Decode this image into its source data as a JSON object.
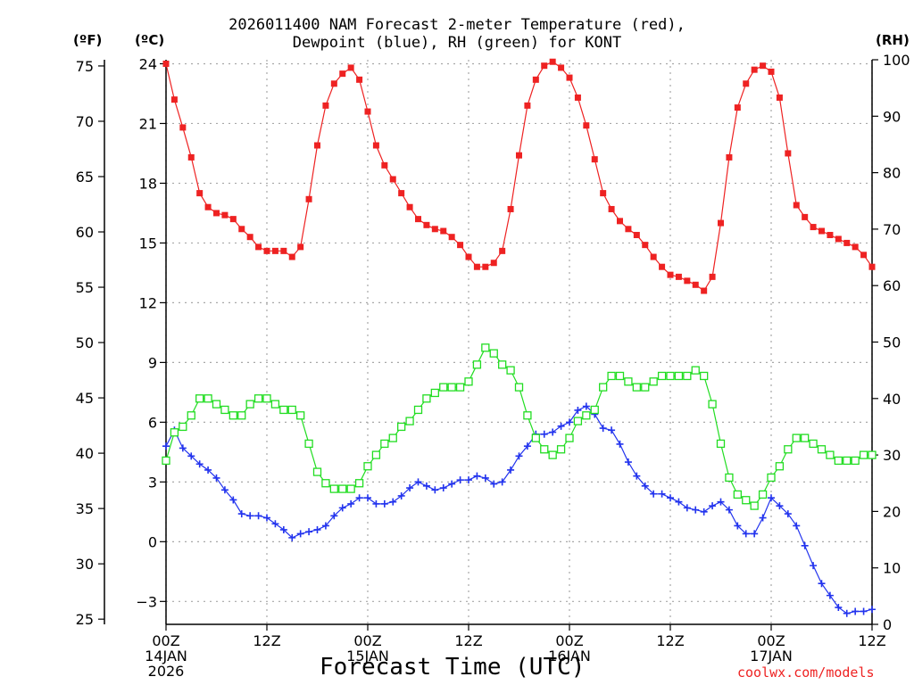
{
  "chart_data": {
    "type": "line",
    "title_line1": "2026011400 NAM Forecast 2-meter Temperature (red),",
    "title_line2": "Dewpoint (blue), RH (green) for KONT",
    "xlabel": "Forecast Time (UTC)",
    "credit": "coolwx.com/models",
    "left_unit_f": "(ºF)",
    "left_unit_c": "(ºC)",
    "right_unit": "(RH)",
    "x_range_hours": [
      0,
      84
    ],
    "celsius_range": [
      -4.15,
      24.2
    ],
    "rh_range": [
      0,
      100
    ],
    "celsius_ticks": [
      "-3",
      "0",
      "3",
      "6",
      "9",
      "12",
      "15",
      "18",
      "21",
      "24"
    ],
    "fahrenheit_ticks": [
      "25",
      "30",
      "35",
      "40",
      "45",
      "50",
      "55",
      "60",
      "65",
      "70",
      "75"
    ],
    "rh_ticks": [
      "0",
      "10",
      "20",
      "30",
      "40",
      "50",
      "60",
      "70",
      "80",
      "90",
      "100"
    ],
    "x_ticks": [
      {
        "hour": 0,
        "label": "00Z",
        "date": "14JAN",
        "year": "2026"
      },
      {
        "hour": 12,
        "label": "12Z",
        "date": "",
        "year": ""
      },
      {
        "hour": 24,
        "label": "00Z",
        "date": "15JAN",
        "year": ""
      },
      {
        "hour": 36,
        "label": "12Z",
        "date": "",
        "year": ""
      },
      {
        "hour": 48,
        "label": "00Z",
        "date": "16JAN",
        "year": ""
      },
      {
        "hour": 60,
        "label": "12Z",
        "date": "",
        "year": ""
      },
      {
        "hour": 72,
        "label": "00Z",
        "date": "17JAN",
        "year": ""
      },
      {
        "hour": 84,
        "label": "12Z",
        "date": "",
        "year": ""
      }
    ],
    "series": [
      {
        "name": "Temperature",
        "axis": "celsius",
        "color": "#ee2222",
        "marker": "filled-square",
        "x": [
          0,
          1,
          2,
          3,
          4,
          5,
          6,
          7,
          8,
          9,
          10,
          11,
          12,
          13,
          14,
          15,
          16,
          17,
          18,
          19,
          20,
          21,
          22,
          23,
          24,
          25,
          26,
          27,
          28,
          29,
          30,
          31,
          32,
          33,
          34,
          35,
          36,
          37,
          38,
          39,
          40,
          41,
          42,
          43,
          44,
          45,
          46,
          47,
          48,
          49,
          50,
          51,
          52,
          53,
          54,
          55,
          56,
          57,
          58,
          59,
          60,
          61,
          62,
          63,
          64,
          65,
          66,
          67,
          68,
          69,
          70,
          71,
          72,
          73,
          74,
          75,
          76,
          77,
          78,
          79,
          80,
          81,
          82,
          83,
          84
        ],
        "values": [
          24.0,
          22.2,
          20.8,
          19.3,
          17.5,
          16.8,
          16.5,
          16.4,
          16.2,
          15.7,
          15.3,
          14.8,
          14.6,
          14.6,
          14.6,
          14.3,
          14.8,
          17.2,
          19.9,
          21.9,
          23.0,
          23.5,
          23.8,
          23.2,
          21.6,
          19.9,
          18.9,
          18.2,
          17.5,
          16.8,
          16.2,
          15.9,
          15.7,
          15.6,
          15.3,
          14.9,
          14.3,
          13.8,
          13.8,
          14.0,
          14.6,
          16.7,
          19.4,
          21.9,
          23.2,
          23.9,
          24.1,
          23.8,
          23.3,
          22.3,
          20.9,
          19.2,
          17.5,
          16.7,
          16.1,
          15.7,
          15.4,
          14.9,
          14.3,
          13.8,
          13.4,
          13.3,
          13.1,
          12.9,
          12.6,
          13.3,
          16.0,
          19.3,
          21.8,
          23.0,
          23.7,
          23.9,
          23.6,
          22.3,
          19.5,
          16.9,
          16.3,
          15.8,
          15.6,
          15.4,
          15.2,
          15.0,
          14.8,
          14.4,
          13.8
        ]
      },
      {
        "name": "Dewpoint",
        "axis": "celsius",
        "color": "#2233ee",
        "marker": "plus",
        "x": [
          0,
          1,
          2,
          3,
          4,
          5,
          6,
          7,
          8,
          9,
          10,
          11,
          12,
          13,
          14,
          15,
          16,
          17,
          18,
          19,
          20,
          21,
          22,
          23,
          24,
          25,
          26,
          27,
          28,
          29,
          30,
          31,
          32,
          33,
          34,
          35,
          36,
          37,
          38,
          39,
          40,
          41,
          42,
          43,
          44,
          45,
          46,
          47,
          48,
          49,
          50,
          51,
          52,
          53,
          54,
          55,
          56,
          57,
          58,
          59,
          60,
          61,
          62,
          63,
          64,
          65,
          66,
          67,
          68,
          69,
          70,
          71,
          72,
          73,
          74,
          75,
          76,
          77,
          78,
          79,
          80,
          81,
          82,
          83,
          84
        ],
        "values": [
          4.8,
          5.6,
          4.7,
          4.3,
          3.9,
          3.6,
          3.2,
          2.6,
          2.1,
          1.4,
          1.3,
          1.3,
          1.2,
          0.9,
          0.6,
          0.2,
          0.4,
          0.5,
          0.6,
          0.8,
          1.3,
          1.7,
          1.9,
          2.2,
          2.2,
          1.9,
          1.9,
          2.0,
          2.3,
          2.7,
          3.0,
          2.8,
          2.6,
          2.7,
          2.9,
          3.1,
          3.1,
          3.3,
          3.2,
          2.9,
          3.0,
          3.6,
          4.3,
          4.8,
          5.4,
          5.4,
          5.5,
          5.8,
          6.0,
          6.6,
          6.8,
          6.4,
          5.7,
          5.6,
          4.9,
          4.0,
          3.3,
          2.8,
          2.4,
          2.4,
          2.2,
          2.0,
          1.7,
          1.6,
          1.5,
          1.8,
          2.0,
          1.6,
          0.8,
          0.4,
          0.4,
          1.2,
          2.2,
          1.8,
          1.4,
          0.8,
          -0.2,
          -1.2,
          -2.1,
          -2.7,
          -3.3,
          -3.6,
          -3.5,
          -3.5,
          -3.4
        ]
      },
      {
        "name": "Relative Humidity",
        "axis": "rh",
        "color": "#22dd22",
        "marker": "open-square",
        "x": [
          0,
          1,
          2,
          3,
          4,
          5,
          6,
          7,
          8,
          9,
          10,
          11,
          12,
          13,
          14,
          15,
          16,
          17,
          18,
          19,
          20,
          21,
          22,
          23,
          24,
          25,
          26,
          27,
          28,
          29,
          30,
          31,
          32,
          33,
          34,
          35,
          36,
          37,
          38,
          39,
          40,
          41,
          42,
          43,
          44,
          45,
          46,
          47,
          48,
          49,
          50,
          51,
          52,
          53,
          54,
          55,
          56,
          57,
          58,
          59,
          60,
          61,
          62,
          63,
          64,
          65,
          66,
          67,
          68,
          69,
          70,
          71,
          72,
          73,
          74,
          75,
          76,
          77,
          78,
          79,
          80,
          81,
          82,
          83,
          84
        ],
        "values": [
          29,
          34,
          35,
          37,
          40,
          40,
          39,
          38,
          37,
          37,
          39,
          40,
          40,
          39,
          38,
          38,
          37,
          32,
          27,
          25,
          24,
          24,
          24,
          25,
          28,
          30,
          32,
          33,
          35,
          36,
          38,
          40,
          41,
          42,
          42,
          42,
          43,
          46,
          49,
          48,
          46,
          45,
          42,
          37,
          33,
          31,
          30,
          31,
          33,
          36,
          37,
          38,
          42,
          44,
          44,
          43,
          42,
          42,
          43,
          44,
          44,
          44,
          44,
          45,
          44,
          39,
          32,
          26,
          23,
          22,
          21,
          23,
          26,
          28,
          31,
          33,
          33,
          32,
          31,
          30,
          29,
          29,
          29,
          30,
          30
        ]
      }
    ]
  }
}
